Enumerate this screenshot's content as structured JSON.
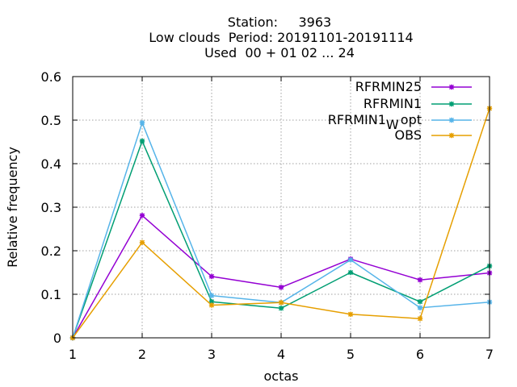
{
  "chart_data": {
    "type": "line",
    "title_lines": [
      "Station:     3963",
      "Low clouds  Period: 20191101-20191114",
      "Used  00 + 01 02 ... 24"
    ],
    "xlabel": "octas",
    "ylabel": "Relative frequency",
    "x": [
      1,
      2,
      3,
      4,
      5,
      6,
      7
    ],
    "xlim": [
      1,
      7
    ],
    "ylim": [
      0,
      0.6
    ],
    "xticks": [
      1,
      2,
      3,
      4,
      5,
      6,
      7
    ],
    "yticks": [
      0,
      0.1,
      0.2,
      0.3,
      0.4,
      0.5,
      0.6
    ],
    "ytick_labels": [
      "0",
      "0.1",
      "0.2",
      "0.3",
      "0.4",
      "0.5",
      "0.6"
    ],
    "grid": true,
    "legend_position": "top-right",
    "series": [
      {
        "name": "RFRMIN25",
        "color": "#9400d3",
        "values": [
          0.0,
          0.281,
          0.141,
          0.116,
          0.181,
          0.133,
          0.149
        ]
      },
      {
        "name": "RFRMIN1",
        "color": "#009e73",
        "values": [
          0.0,
          0.452,
          0.083,
          0.068,
          0.15,
          0.083,
          0.165
        ]
      },
      {
        "name": "RFRMIN1",
        "subscript": "W",
        "suffix": "opt",
        "color": "#56b4e9",
        "values": [
          0.0,
          0.494,
          0.097,
          0.081,
          0.179,
          0.069,
          0.082
        ]
      },
      {
        "name": "OBS",
        "color": "#e69f00",
        "values": [
          0.0,
          0.219,
          0.075,
          0.081,
          0.054,
          0.044,
          0.527
        ]
      }
    ]
  }
}
